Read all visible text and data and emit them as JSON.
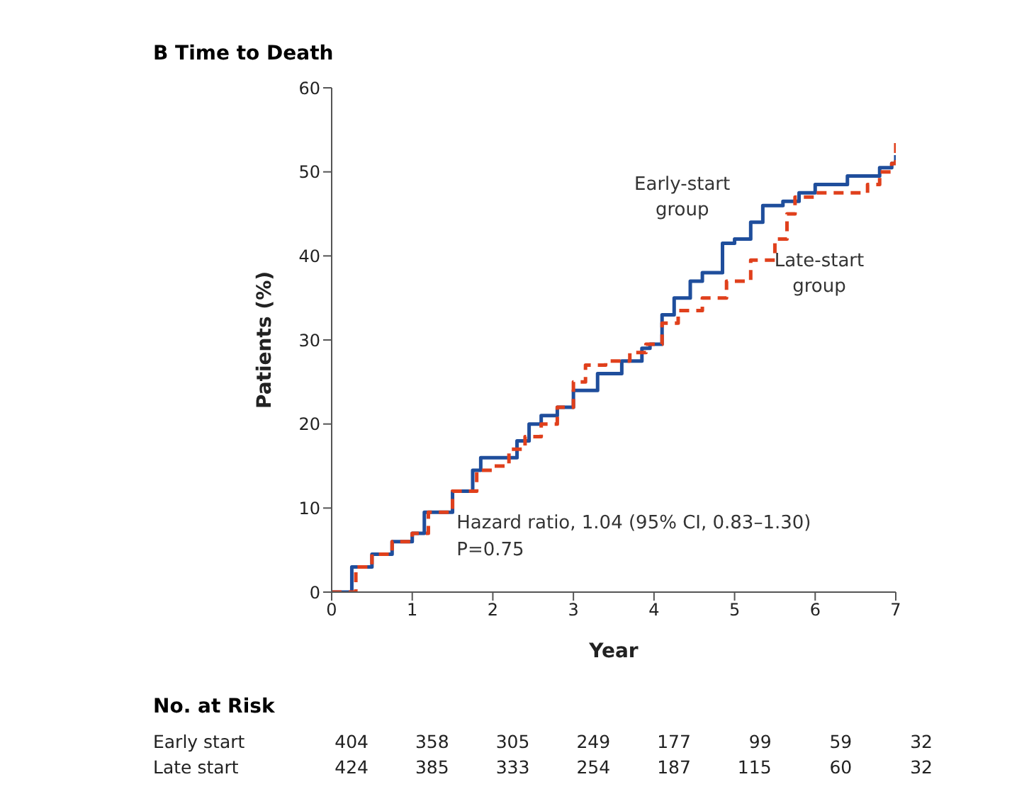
{
  "chart_data": {
    "type": "step",
    "title": "B  Time to Death",
    "xlabel": "Year",
    "ylabel": "Patients (%)",
    "xlim": [
      0,
      7
    ],
    "xticks": [
      0,
      1,
      2,
      3,
      4,
      5,
      6,
      7
    ],
    "ylim": [
      0,
      60
    ],
    "yticks": [
      0,
      10,
      20,
      30,
      40,
      50,
      60
    ],
    "grid": false,
    "series": [
      {
        "name": "Early-start group",
        "color": "#1f4e9c",
        "line_style": "solid",
        "x": [
          0,
          0.25,
          0.5,
          0.75,
          1,
          1.15,
          1.5,
          1.75,
          1.85,
          2.1,
          2.3,
          2.45,
          2.6,
          2.8,
          3,
          3.3,
          3.6,
          3.85,
          3.95,
          4.1,
          4.25,
          4.45,
          4.6,
          4.85,
          5,
          5.2,
          5.35,
          5.6,
          5.8,
          6,
          6.4,
          6.8,
          6.95,
          7
        ],
        "values": [
          0,
          3,
          4.5,
          6,
          7,
          9.5,
          12,
          14.5,
          16,
          16,
          18,
          20,
          21,
          22,
          24,
          26,
          27.5,
          29,
          29.5,
          33,
          35,
          37,
          38,
          41.5,
          42,
          44,
          46,
          46.5,
          47.5,
          48.5,
          49.5,
          50.5,
          51,
          52
        ]
      },
      {
        "name": "Late-start group",
        "color": "#e0401c",
        "line_style": "dashed",
        "x": [
          0,
          0.3,
          0.5,
          0.75,
          1,
          1.2,
          1.5,
          1.8,
          2,
          2.2,
          2.4,
          2.6,
          2.8,
          3,
          3.15,
          3.4,
          3.7,
          3.9,
          4.1,
          4.3,
          4.6,
          4.9,
          5.2,
          5.5,
          5.65,
          5.75,
          6,
          6.65,
          6.8,
          6.95,
          7
        ],
        "values": [
          0,
          3,
          4.5,
          6,
          7,
          9.5,
          12,
          14.5,
          15,
          17,
          18.5,
          20,
          22,
          25,
          27,
          27.5,
          28.5,
          29.5,
          32,
          33.5,
          35,
          37,
          39.5,
          42,
          45,
          47,
          47.5,
          48.5,
          50,
          51,
          54
        ]
      }
    ],
    "annotations": [
      "Hazard ratio, 1.04 (95% CI, 0.83–1.30)",
      "P=0.75",
      "No. at Risk",
      "Early start",
      "404",
      "358",
      "305",
      "249",
      "177",
      "99",
      "59",
      "32",
      "Late start",
      "424",
      "385",
      "333",
      "254",
      "187",
      "115",
      "60",
      "32"
    ]
  }
}
